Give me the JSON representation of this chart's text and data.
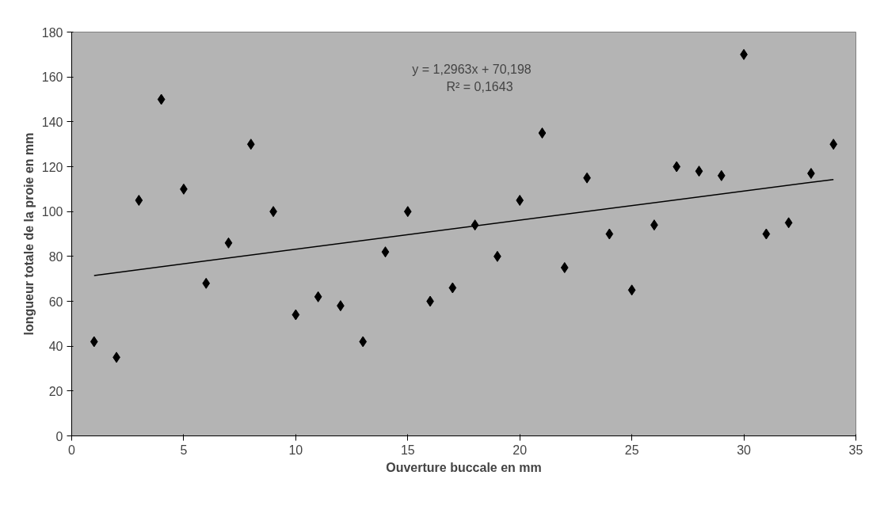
{
  "chart_data": {
    "type": "scatter",
    "xlabel": "Ouverture buccale en mm",
    "ylabel": "longueur totale de la proie en mm",
    "x": [
      1,
      2,
      3,
      4,
      5,
      6,
      7,
      8,
      9,
      10,
      11,
      12,
      13,
      14,
      15,
      16,
      17,
      18,
      19,
      20,
      21,
      22,
      23,
      24,
      25,
      26,
      27,
      28,
      29,
      30,
      31,
      32,
      33,
      34
    ],
    "series": [
      {
        "color": "#000000",
        "marker": "diamond",
        "values": [
          42,
          35,
          105,
          150,
          110,
          68,
          86,
          130,
          100,
          54,
          62,
          58,
          42,
          82,
          100,
          60,
          66,
          94,
          80,
          105,
          135,
          75,
          115,
          90,
          65,
          94,
          120,
          118,
          116,
          170,
          90,
          95,
          117,
          130
        ]
      },
      {
        "type": "line",
        "color": "#000000",
        "line_style": "solid",
        "x": [
          1,
          34
        ],
        "values": [
          71.5,
          114.3
        ]
      }
    ],
    "annotations": [
      "y = 1,2963x + 70,198",
      "R² = 0,1643"
    ],
    "xlim": [
      0,
      35
    ],
    "xticks": [
      0,
      5,
      10,
      15,
      20,
      25,
      30,
      35
    ],
    "ylim": [
      0,
      180
    ],
    "yticks": [
      0,
      20,
      40,
      60,
      80,
      100,
      120,
      140,
      160,
      180
    ],
    "grid": false
  }
}
